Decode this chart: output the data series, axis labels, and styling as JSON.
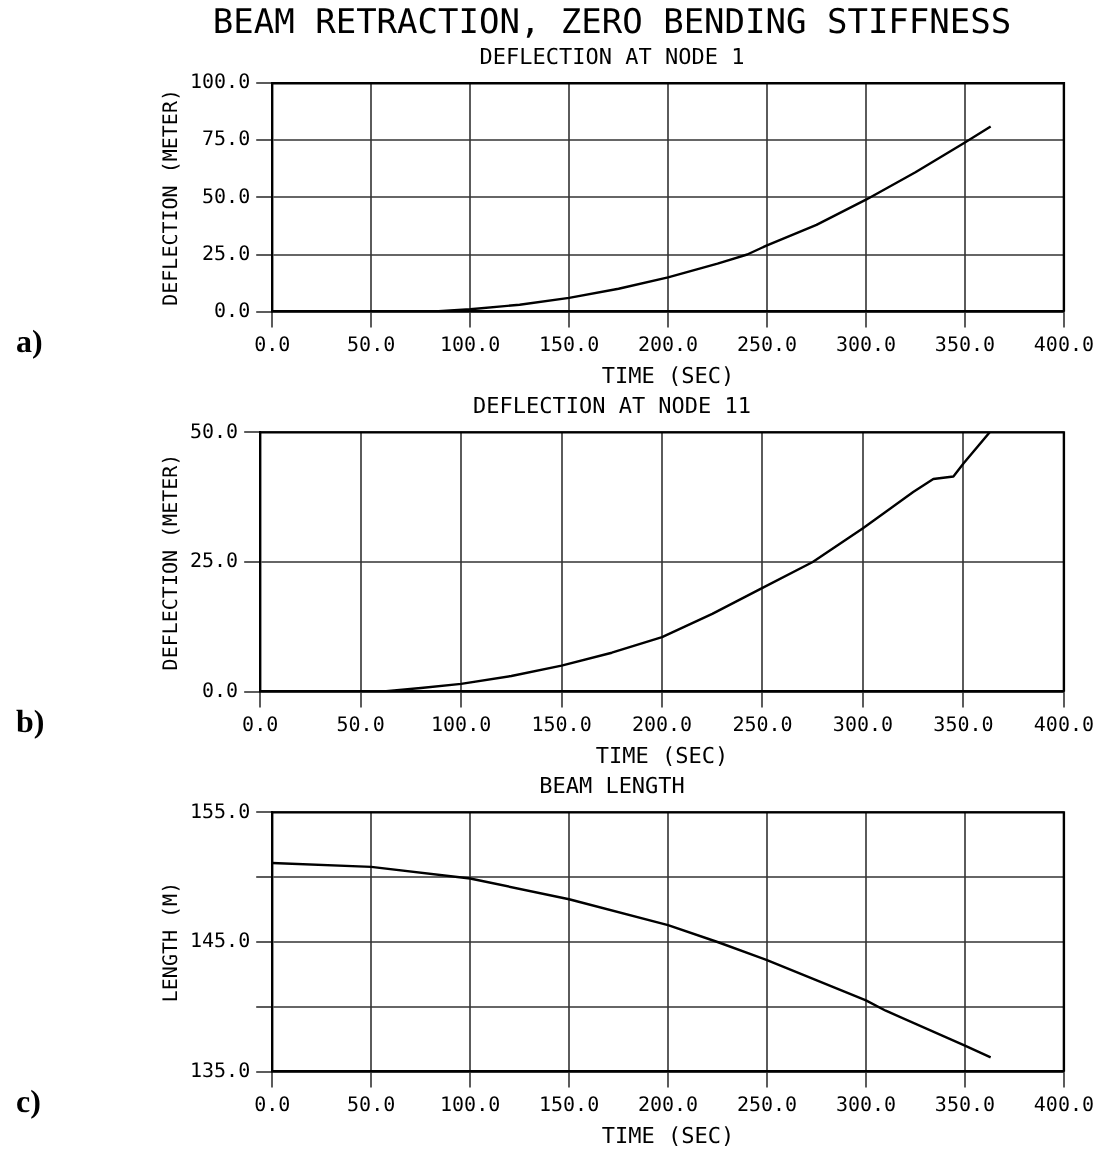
{
  "chart_data": [
    {
      "type": "line",
      "title": "BEAM RETRACTION, ZERO BENDING STIFFNESS",
      "subtitle": "DEFLECTION AT NODE 1",
      "xlabel": "TIME (SEC)",
      "ylabel": "DEFLECTION (METER)",
      "annotations": [
        "a)"
      ],
      "series": [
        {
          "color": "#000000",
          "x": [
            0,
            60,
            80,
            100,
            125,
            150,
            175,
            200,
            225,
            240,
            250,
            275,
            300,
            325,
            350,
            363
          ],
          "values": [
            0,
            0,
            0,
            1,
            3,
            6,
            10,
            15,
            21,
            25,
            29,
            38,
            49,
            61,
            74,
            81
          ]
        }
      ],
      "xlim": [
        0,
        400
      ],
      "xticks": [
        {
          "value": 0,
          "label": "0.0"
        },
        {
          "value": 50,
          "label": "50.0"
        },
        {
          "value": 100,
          "label": "100.0"
        },
        {
          "value": 150,
          "label": "150.0"
        },
        {
          "value": 200,
          "label": "200.0"
        },
        {
          "value": 250,
          "label": "250.0"
        },
        {
          "value": 300,
          "label": "300.0"
        },
        {
          "value": 350,
          "label": "350.0"
        },
        {
          "value": 400,
          "label": "400.0"
        }
      ],
      "ylim": [
        0,
        100
      ],
      "yticks": [
        {
          "value": 0,
          "label": "0.0"
        },
        {
          "value": 25,
          "label": "25.0"
        },
        {
          "value": 50,
          "label": "50.0"
        },
        {
          "value": 75,
          "label": "75.0"
        },
        {
          "value": 100,
          "label": "100.0"
        }
      ],
      "grid": true,
      "legend": false,
      "marker": "none",
      "line_style": "solid"
    },
    {
      "type": "line",
      "title": "DEFLECTION AT NODE 11",
      "xlabel": "TIME (SEC)",
      "ylabel": "DEFLECTION (METER)",
      "annotations": [
        "b)"
      ],
      "series": [
        {
          "color": "#000000",
          "x": [
            0,
            60,
            80,
            100,
            125,
            150,
            175,
            200,
            225,
            250,
            275,
            300,
            325,
            335,
            345,
            350,
            363
          ],
          "values": [
            0,
            0,
            0.7,
            1.5,
            3,
            5,
            7.5,
            10.5,
            15,
            20,
            25,
            31.5,
            38.5,
            41,
            41.5,
            44,
            50
          ]
        }
      ],
      "xlim": [
        0,
        400
      ],
      "xticks": [
        {
          "value": 0,
          "label": "0.0"
        },
        {
          "value": 50,
          "label": "50.0"
        },
        {
          "value": 100,
          "label": "100.0"
        },
        {
          "value": 150,
          "label": "150.0"
        },
        {
          "value": 200,
          "label": "200.0"
        },
        {
          "value": 250,
          "label": "250.0"
        },
        {
          "value": 300,
          "label": "300.0"
        },
        {
          "value": 350,
          "label": "350.0"
        },
        {
          "value": 400,
          "label": "400.0"
        }
      ],
      "ylim": [
        0,
        50
      ],
      "yticks": [
        {
          "value": 0,
          "label": "0.0"
        },
        {
          "value": 25,
          "label": "25.0"
        },
        {
          "value": 50,
          "label": "50.0"
        }
      ],
      "grid": true,
      "legend": false,
      "marker": "none",
      "line_style": "solid"
    },
    {
      "type": "line",
      "title": "BEAM LENGTH",
      "xlabel": "TIME (SEC)",
      "ylabel": "LENGTH (M)",
      "annotations": [
        "c)"
      ],
      "series": [
        {
          "color": "#000000",
          "x": [
            0,
            50,
            100,
            150,
            200,
            225,
            250,
            300,
            310,
            350,
            363
          ],
          "values": [
            151.1,
            150.8,
            149.9,
            148.3,
            146.3,
            145,
            143.6,
            140.5,
            139.7,
            137,
            136.1
          ]
        }
      ],
      "xlim": [
        0,
        400
      ],
      "xticks": [
        {
          "value": 0,
          "label": "0.0"
        },
        {
          "value": 50,
          "label": "50.0"
        },
        {
          "value": 100,
          "label": "100.0"
        },
        {
          "value": 150,
          "label": "150.0"
        },
        {
          "value": 200,
          "label": "200.0"
        },
        {
          "value": 250,
          "label": "250.0"
        },
        {
          "value": 300,
          "label": "300.0"
        },
        {
          "value": 350,
          "label": "350.0"
        },
        {
          "value": 400,
          "label": "400.0"
        }
      ],
      "ylim": [
        135,
        155
      ],
      "yticks": [
        {
          "value": 135,
          "label": "135.0"
        },
        {
          "value": 140,
          "label": null
        },
        {
          "value": 145,
          "label": "145.0"
        },
        {
          "value": 150,
          "label": null
        },
        {
          "value": 155,
          "label": "155.0"
        }
      ],
      "grid": true,
      "legend": false,
      "marker": "none",
      "line_style": "solid"
    }
  ]
}
